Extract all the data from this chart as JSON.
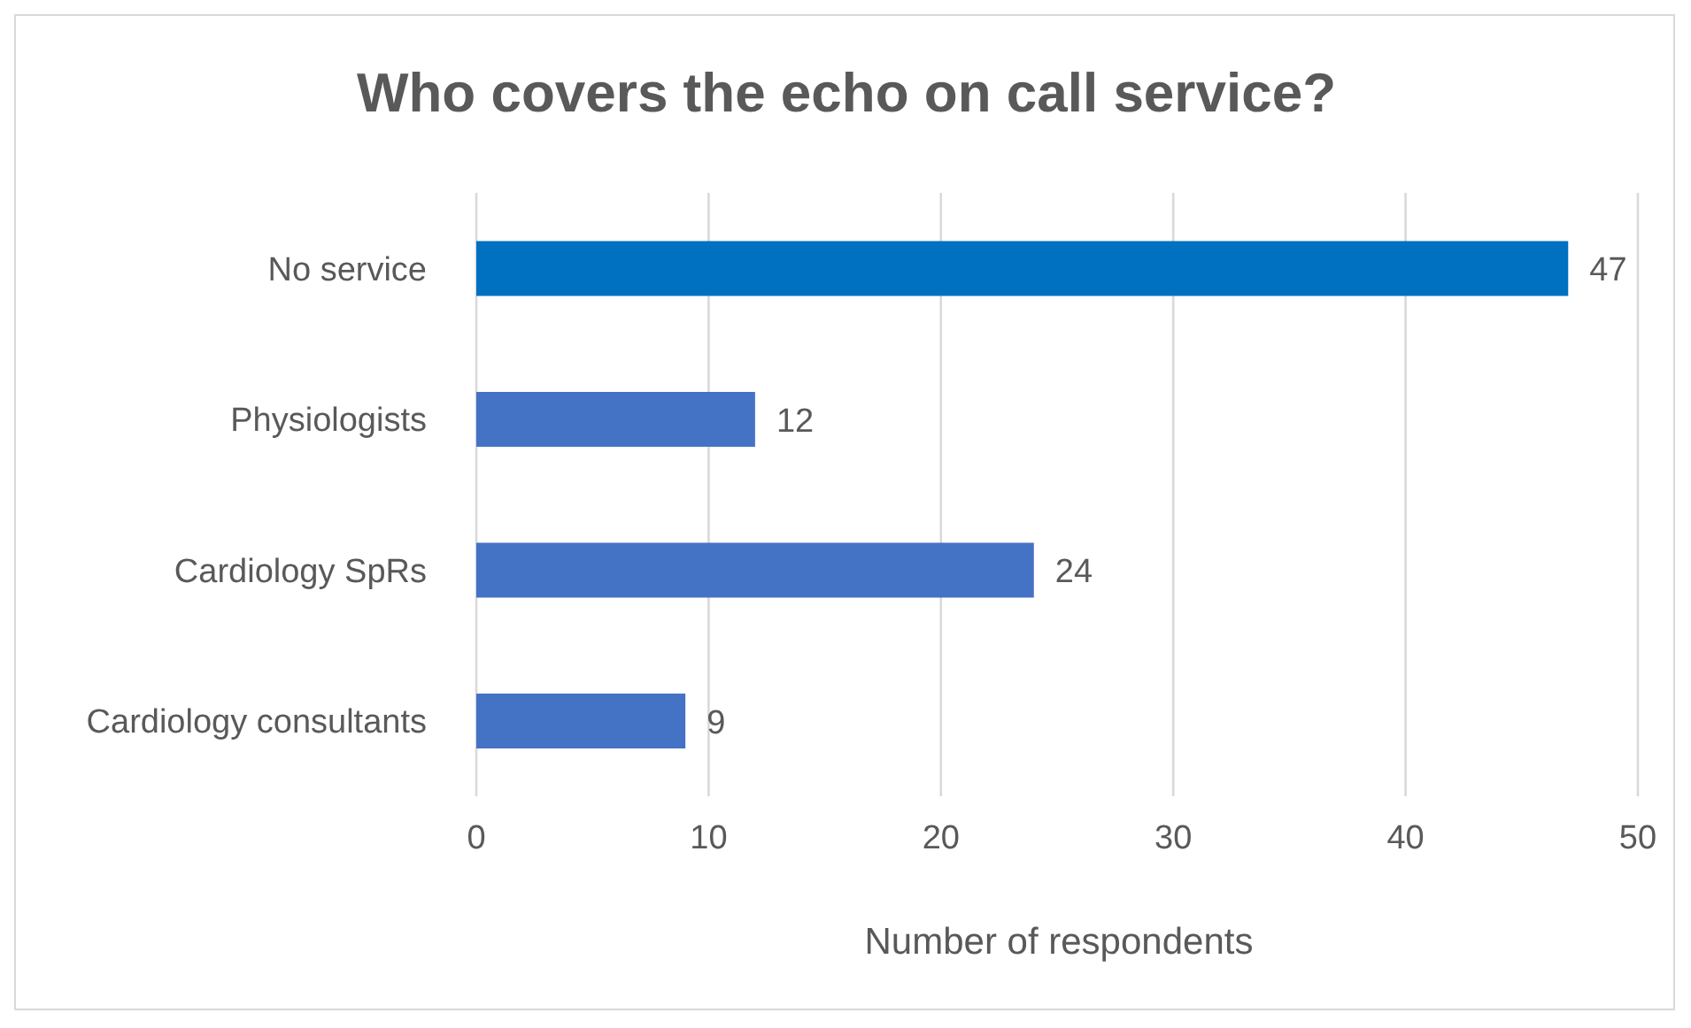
{
  "chart_data": {
    "type": "bar",
    "orientation": "horizontal",
    "title": "Who covers the echo on call service?",
    "xlabel": "Number of respondents",
    "categories": [
      "No service",
      "Physiologists",
      "Cardiology SpRs",
      "Cardiology consultants"
    ],
    "values": [
      47,
      12,
      24,
      9
    ],
    "colors": [
      "#0070c0",
      "#4472c4",
      "#4472c4",
      "#4472c4"
    ],
    "xlim": [
      0,
      50
    ],
    "xticks": [
      0,
      10,
      20,
      30,
      40,
      50
    ],
    "grid": "x",
    "data_labels": true
  }
}
